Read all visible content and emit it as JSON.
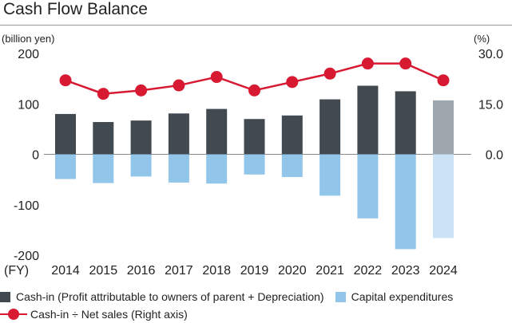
{
  "chart_data": {
    "type": "bar+line",
    "title": "Cash Flow Balance",
    "left_unit": "(billion yen)",
    "right_unit": "(%)",
    "x_prefix": "(FY)",
    "categories": [
      "2014",
      "2015",
      "2016",
      "2017",
      "2018",
      "2019",
      "2020",
      "2021",
      "2022",
      "2023",
      "2024"
    ],
    "left_axis": {
      "ylim": [
        -200,
        200
      ],
      "ticks": [
        200,
        100,
        0,
        -100,
        -200
      ],
      "tick_labels": [
        "200",
        "100",
        "0",
        "-100",
        "-200"
      ]
    },
    "right_axis": {
      "ylim": [
        -30,
        30
      ],
      "ticks": [
        30,
        15,
        0
      ],
      "tick_labels": [
        "30.0",
        "15.0",
        "0.0"
      ]
    },
    "series": [
      {
        "name": "Cash-in (Profit attributable to owners of parent + Depreciation)",
        "kind": "bar",
        "axis": "left",
        "values": [
          80,
          64,
          67,
          81,
          90,
          70,
          77,
          109,
          136,
          125,
          107
        ],
        "color": "#414a51",
        "highlight_color": "#9ea7ad"
      },
      {
        "name": "Capital expenditures",
        "kind": "bar",
        "axis": "left",
        "values": [
          -49,
          -57,
          -44,
          -56,
          -58,
          -40,
          -45,
          -82,
          -127,
          -188,
          -166
        ],
        "color": "#92c5ea",
        "highlight_color": "#cbe3f5"
      },
      {
        "name": "Cash-in ÷ Net sales (Right axis)",
        "kind": "line",
        "axis": "right",
        "values": [
          22.0,
          18.0,
          19.0,
          20.5,
          23.0,
          19.0,
          21.5,
          24.0,
          27.0,
          27.0,
          22.0
        ],
        "color": "#d71a32"
      }
    ],
    "highlight_last": true
  },
  "legend": {
    "cash_in": "Cash-in (Profit attributable to owners of parent + Depreciation)",
    "capex": "Capital expenditures",
    "ratio": "Cash-in ÷ Net sales (Right axis)"
  }
}
